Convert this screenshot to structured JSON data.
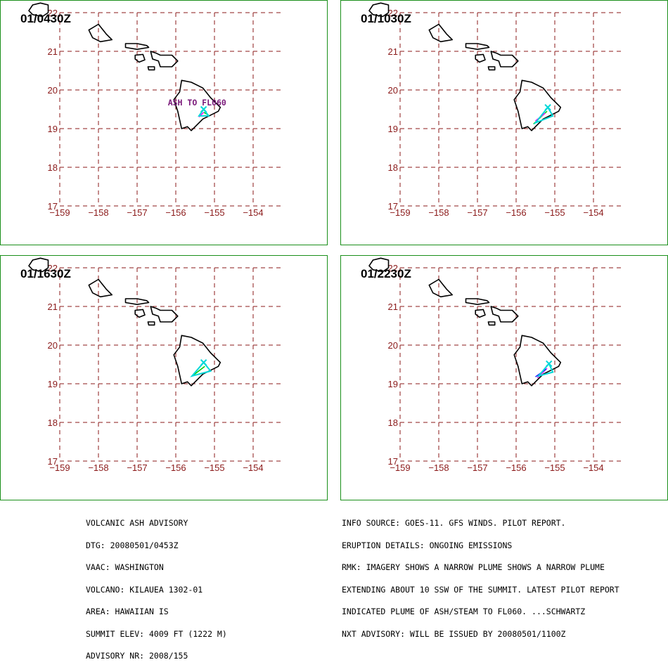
{
  "panels": [
    {
      "title": "01/0430Z",
      "label": "ASH TO FL060",
      "plume": [
        [
          [
            -155.28,
            19.42
          ],
          [
            -155.15,
            19.35
          ]
        ],
        [
          [
            -155.28,
            19.42
          ],
          [
            -155.4,
            19.3
          ]
        ]
      ],
      "plume_colors": [
        "#00d000",
        "#ff00ff"
      ],
      "triangle": {
        "apex": [
          -155.28,
          19.5
        ],
        "base": [
          [
            -155.4,
            19.33
          ],
          [
            -155.15,
            19.33
          ]
        ]
      }
    },
    {
      "title": "01/1030Z",
      "label": "",
      "plume": [
        [
          [
            -155.2,
            19.45
          ],
          [
            -155.55,
            19.12
          ]
        ],
        [
          [
            -155.25,
            19.4
          ],
          [
            -155.5,
            19.2
          ]
        ]
      ],
      "plume_colors": [
        "#00d000",
        "#ff00ff"
      ],
      "triangle": {
        "apex": [
          -155.18,
          19.55
        ],
        "base": [
          [
            -155.5,
            19.15
          ],
          [
            -155.05,
            19.33
          ]
        ]
      }
    },
    {
      "title": "01/1630Z",
      "label": "",
      "plume": [
        [
          [
            -155.25,
            19.45
          ],
          [
            -155.55,
            19.22
          ]
        ]
      ],
      "plume_colors": [
        "#00d000"
      ],
      "triangle": {
        "apex": [
          -155.28,
          19.55
        ],
        "base": [
          [
            -155.58,
            19.2
          ],
          [
            -155.1,
            19.33
          ]
        ]
      }
    },
    {
      "title": "01/2230Z",
      "label": "",
      "plume": [
        [
          [
            -155.2,
            19.4
          ],
          [
            -155.45,
            19.15
          ]
        ],
        [
          [
            -155.22,
            19.38
          ],
          [
            -155.5,
            19.18
          ]
        ]
      ],
      "plume_colors": [
        "#ff00ff",
        "#1a1aff"
      ],
      "triangle": {
        "apex": [
          -155.15,
          19.52
        ],
        "base": [
          [
            -155.42,
            19.2
          ],
          [
            -155.05,
            19.3
          ]
        ]
      }
    }
  ],
  "map": {
    "x_ticks": [
      -159,
      -158,
      -157,
      -156,
      -155,
      -154
    ],
    "y_ticks": [
      22,
      21,
      20,
      19,
      18,
      17
    ],
    "x_labels": [
      "−159",
      "−158",
      "−157",
      "−156",
      "−155",
      "−154"
    ],
    "y_labels": [
      "22",
      "21",
      "20",
      "19",
      "18",
      "17"
    ],
    "colors": {
      "grid": "#8b1a1a",
      "coast": "#000000",
      "frame": "#1a8f1a",
      "label": "#7a1a7a",
      "volcano": "#00d8d8"
    },
    "islands": [
      {
        "name": "kauai",
        "coords": [
          [
            -159.7,
            22.2
          ],
          [
            -159.5,
            22.25
          ],
          [
            -159.3,
            22.2
          ],
          [
            -159.3,
            22.0
          ],
          [
            -159.45,
            21.9
          ],
          [
            -159.7,
            21.95
          ],
          [
            -159.8,
            22.05
          ]
        ]
      },
      {
        "name": "oahu",
        "coords": [
          [
            -158.25,
            21.55
          ],
          [
            -158.0,
            21.7
          ],
          [
            -157.8,
            21.45
          ],
          [
            -157.65,
            21.3
          ],
          [
            -157.95,
            21.25
          ],
          [
            -158.15,
            21.35
          ]
        ]
      },
      {
        "name": "molokai",
        "coords": [
          [
            -157.3,
            21.2
          ],
          [
            -157.0,
            21.2
          ],
          [
            -156.75,
            21.15
          ],
          [
            -156.7,
            21.1
          ],
          [
            -157.0,
            21.05
          ],
          [
            -157.3,
            21.1
          ]
        ]
      },
      {
        "name": "lanai",
        "coords": [
          [
            -157.05,
            20.9
          ],
          [
            -156.85,
            20.92
          ],
          [
            -156.8,
            20.78
          ],
          [
            -156.95,
            20.72
          ],
          [
            -157.05,
            20.8
          ]
        ]
      },
      {
        "name": "kahoolawe",
        "coords": [
          [
            -156.72,
            20.6
          ],
          [
            -156.55,
            20.6
          ],
          [
            -156.55,
            20.52
          ],
          [
            -156.7,
            20.52
          ]
        ]
      },
      {
        "name": "maui",
        "coords": [
          [
            -156.65,
            21.0
          ],
          [
            -156.5,
            20.95
          ],
          [
            -156.4,
            20.9
          ],
          [
            -156.1,
            20.9
          ],
          [
            -155.95,
            20.75
          ],
          [
            -156.1,
            20.6
          ],
          [
            -156.4,
            20.6
          ],
          [
            -156.45,
            20.75
          ],
          [
            -156.6,
            20.8
          ]
        ]
      },
      {
        "name": "hawaii",
        "coords": [
          [
            -155.85,
            20.25
          ],
          [
            -155.6,
            20.2
          ],
          [
            -155.3,
            20.05
          ],
          [
            -155.1,
            19.8
          ],
          [
            -154.85,
            19.55
          ],
          [
            -154.9,
            19.45
          ],
          [
            -155.3,
            19.25
          ],
          [
            -155.6,
            18.95
          ],
          [
            -155.7,
            19.05
          ],
          [
            -155.85,
            19.0
          ],
          [
            -155.95,
            19.45
          ],
          [
            -156.05,
            19.75
          ],
          [
            -155.9,
            19.95
          ]
        ]
      }
    ]
  },
  "info_left": [
    "VOLCANIC ASH ADVISORY",
    "DTG: 20080501/0453Z",
    "VAAC: WASHINGTON",
    "VOLCANO: KILAUEA 1302-01",
    "AREA: HAWAIIAN IS",
    "SUMMIT ELEV: 4009 FT (1222 M)",
    "ADVISORY NR: 2008/155"
  ],
  "info_right": [
    "INFO SOURCE: GOES-11. GFS WINDS. PILOT REPORT.",
    "ERUPTION DETAILS: ONGOING EMISSIONS",
    "RMK: IMAGERY SHOWS A NARROW PLUME SHOWS A NARROW PLUME",
    "EXTENDING ABOUT 10 SSW OF THE SUMMIT. LATEST PILOT REPORT",
    "INDICATED PLUME OF ASH/STEAM TO FL060. ...SCHWARTZ",
    "NXT ADVISORY: WILL BE ISSUED BY 20080501/1100Z"
  ]
}
